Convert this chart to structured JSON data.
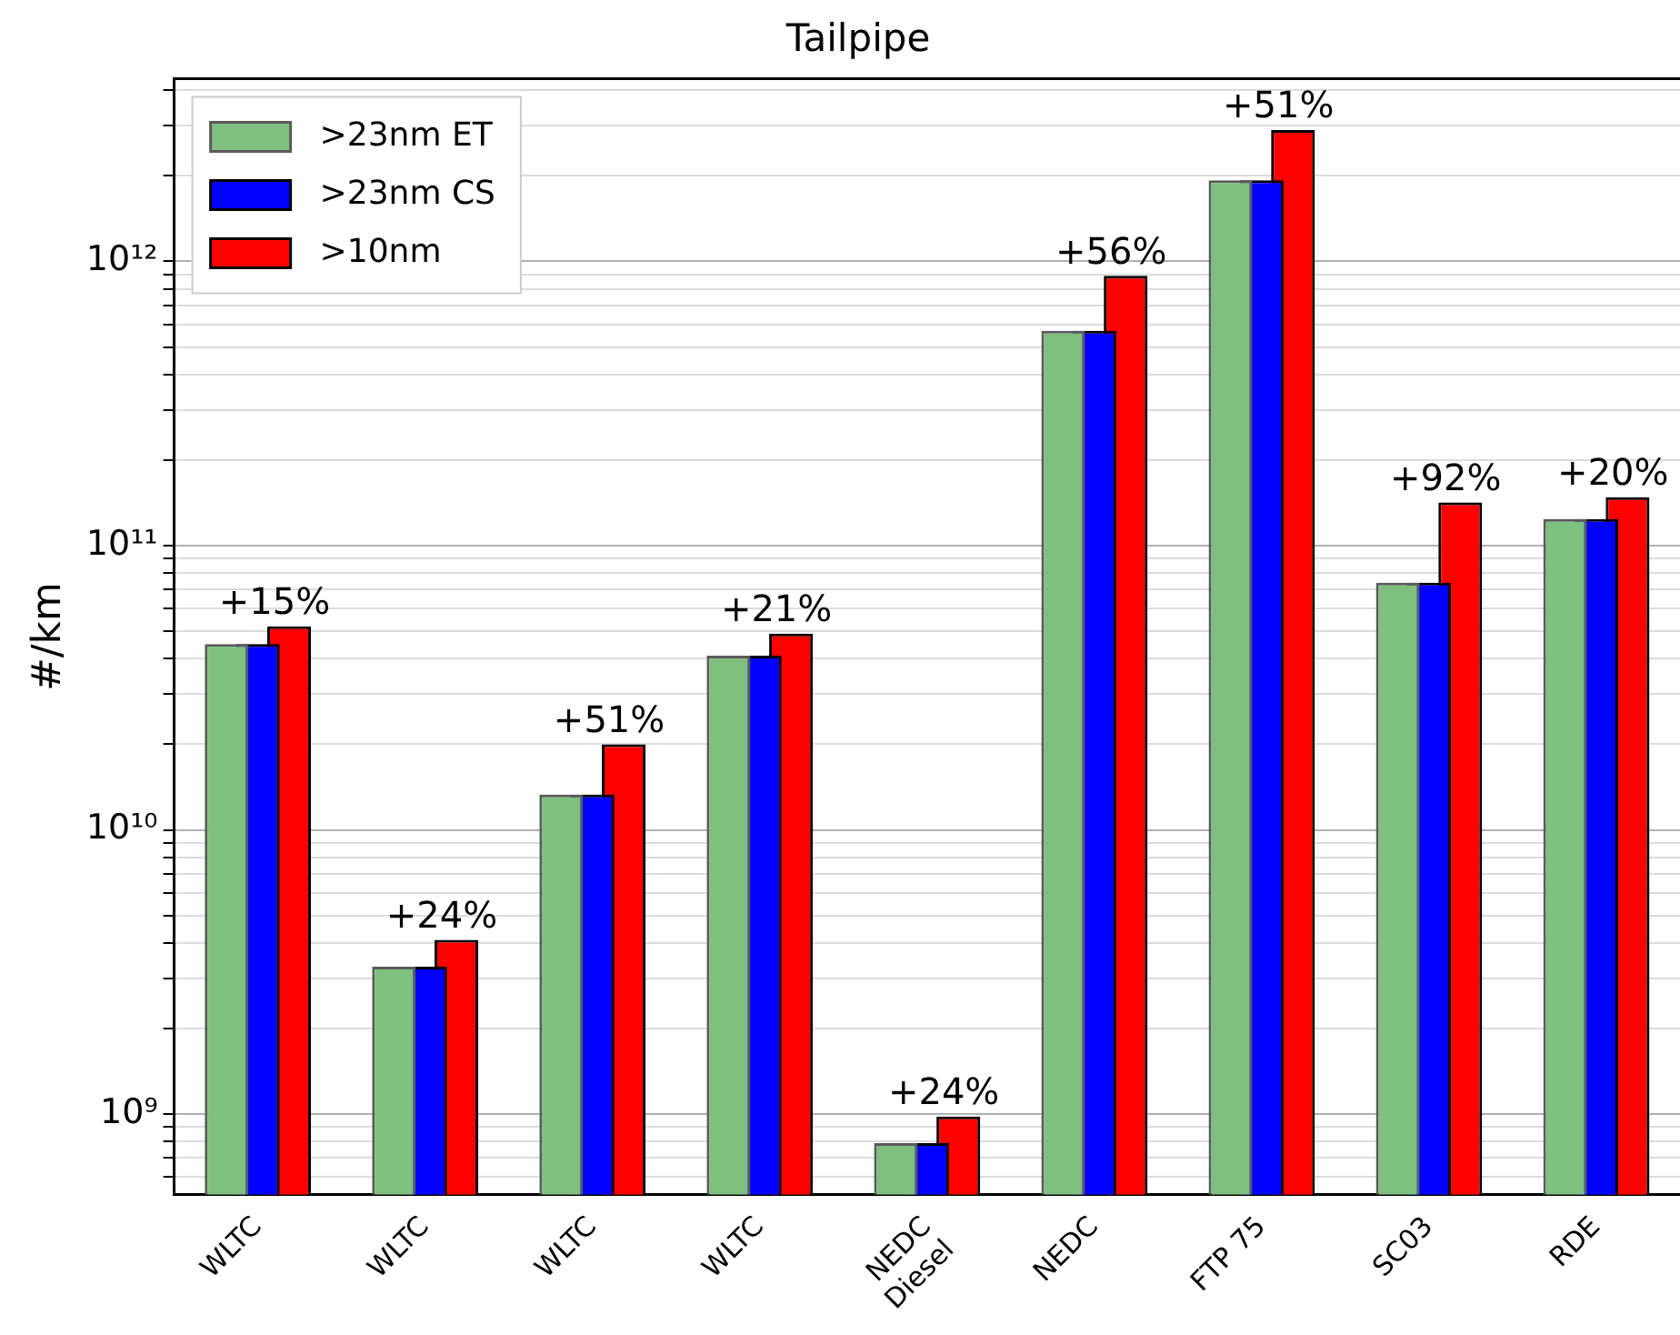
{
  "chart_data": {
    "type": "bar",
    "title": "Tailpipe",
    "ylabel": "#/km",
    "categories": [
      "WLTC",
      "WLTC",
      "WLTC",
      "WLTC",
      "NEDC\nDiesel",
      "NEDC",
      "FTP 75",
      "SC03",
      "RDE"
    ],
    "series": [
      {
        "name": ">23nm ET",
        "color": "#7fbf7f",
        "values": [
          45000000000.0,
          3300000000.0,
          13300000000.0,
          41000000000.0,
          790000000.0,
          570000000000.0,
          1930000000000.0,
          74000000000.0,
          124000000000.0
        ]
      },
      {
        "name": ">23nm CS",
        "color": "#0000ff",
        "values": [
          45000000000.0,
          3300000000.0,
          13300000000.0,
          41000000000.0,
          790000000.0,
          570000000000.0,
          1930000000000.0,
          74000000000.0,
          124000000000.0
        ]
      },
      {
        "name": ">10nm",
        "color": "#ff0000",
        "values": [
          52000000000.0,
          4100000000.0,
          20000000000.0,
          49000000000.0,
          980000000.0,
          890000000000.0,
          2900000000000.0,
          142000000000.0,
          148000000000.0
        ]
      }
    ],
    "annotations": [
      {
        "text": "+15%",
        "y": 52000000000.0
      },
      {
        "text": "+24%",
        "y": 4100000000.0
      },
      {
        "text": "+51%",
        "y": 20000000000.0
      },
      {
        "text": "+21%",
        "y": 49000000000.0
      },
      {
        "text": "+24%",
        "y": 980000000.0
      },
      {
        "text": "+56%",
        "y": 890000000000.0
      },
      {
        "text": "+51%",
        "y": 2900000000000.0
      },
      {
        "text": "+92%",
        "y": 142000000000.0
      },
      {
        "text": "+20%",
        "y": 148000000000.0
      }
    ],
    "log": "y",
    "ylim": [
      520000000.0,
      4400000000000.0
    ],
    "yticks": [
      {
        "value": 600000000.0,
        "label": null
      },
      {
        "value": 700000000.0,
        "label": null
      },
      {
        "value": 800000000.0,
        "label": null
      },
      {
        "value": 900000000.0,
        "label": null
      },
      {
        "value": 1000000000.0,
        "label": "10⁹"
      },
      {
        "value": 2000000000.0,
        "label": null
      },
      {
        "value": 3000000000.0,
        "label": null
      },
      {
        "value": 4000000000.0,
        "label": null
      },
      {
        "value": 5000000000.0,
        "label": null
      },
      {
        "value": 6000000000.0,
        "label": null
      },
      {
        "value": 7000000000.0,
        "label": null
      },
      {
        "value": 8000000000.0,
        "label": null
      },
      {
        "value": 9000000000.0,
        "label": null
      },
      {
        "value": 10000000000.0,
        "label": "10¹⁰"
      },
      {
        "value": 20000000000.0,
        "label": null
      },
      {
        "value": 30000000000.0,
        "label": null
      },
      {
        "value": 40000000000.0,
        "label": null
      },
      {
        "value": 50000000000.0,
        "label": null
      },
      {
        "value": 60000000000.0,
        "label": null
      },
      {
        "value": 70000000000.0,
        "label": null
      },
      {
        "value": 80000000000.0,
        "label": null
      },
      {
        "value": 90000000000.0,
        "label": null
      },
      {
        "value": 100000000000.0,
        "label": "10¹¹"
      },
      {
        "value": 200000000000.0,
        "label": null
      },
      {
        "value": 300000000000.0,
        "label": null
      },
      {
        "value": 400000000000.0,
        "label": null
      },
      {
        "value": 500000000000.0,
        "label": null
      },
      {
        "value": 600000000000.0,
        "label": null
      },
      {
        "value": 700000000000.0,
        "label": null
      },
      {
        "value": 800000000000.0,
        "label": null
      },
      {
        "value": 900000000000.0,
        "label": null
      },
      {
        "value": 1000000000000.0,
        "label": "10¹²"
      },
      {
        "value": 2000000000000.0,
        "label": null
      },
      {
        "value": 3000000000000.0,
        "label": null
      },
      {
        "value": 4000000000000.0,
        "label": null
      }
    ],
    "grid": "y",
    "legend": "top left"
  }
}
